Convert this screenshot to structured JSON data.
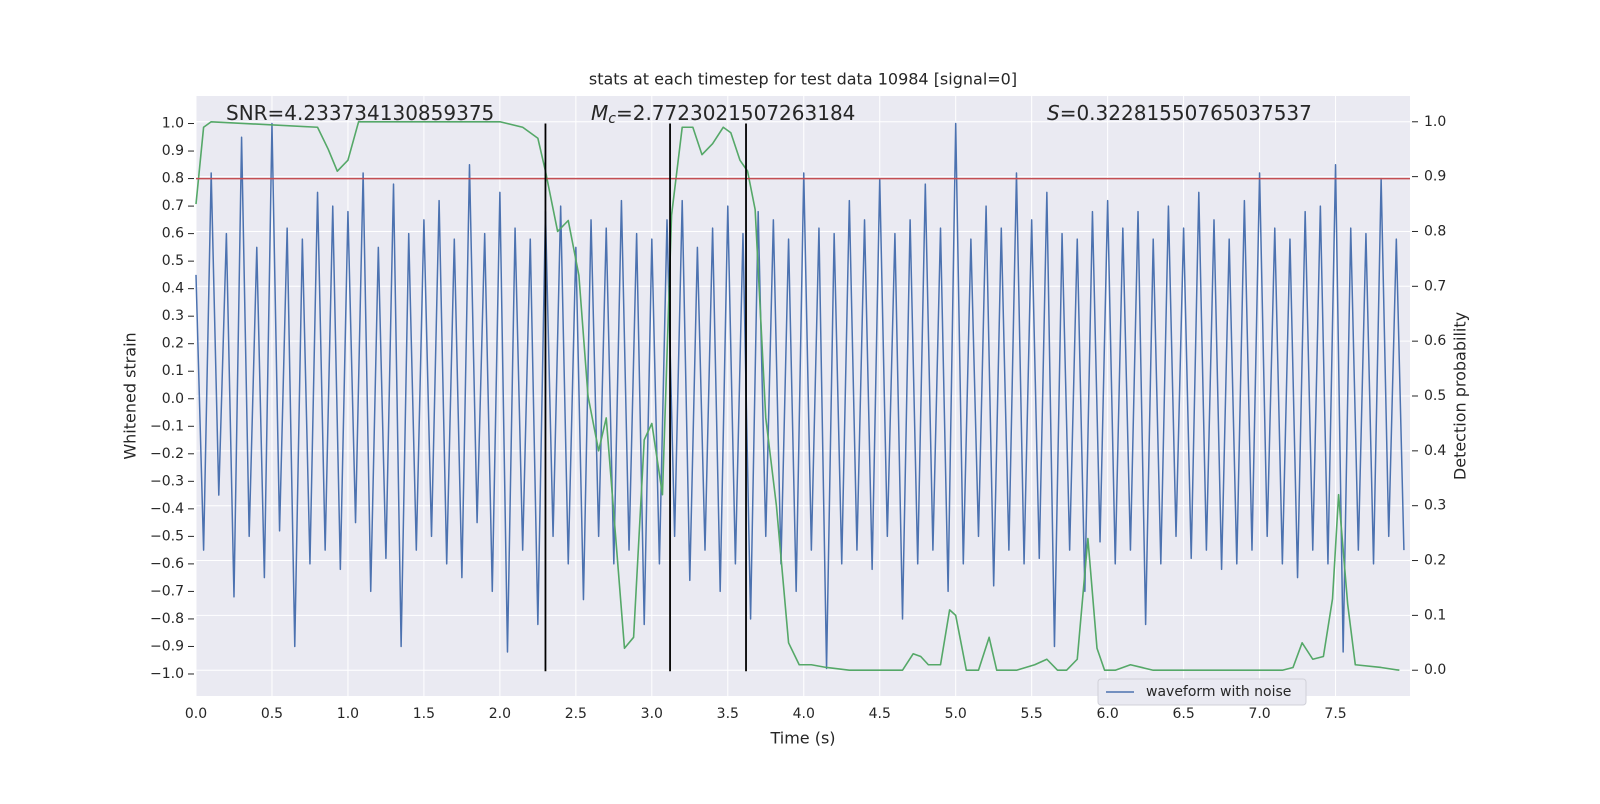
{
  "chart_data": {
    "type": "line",
    "title": "stats at each timestep for test data 10984 [signal=0]",
    "xlabel": "Time (s)",
    "ylabel": "Whitened strain",
    "y2label": "Detection probability",
    "annotations": [
      {
        "parts": [
          "SNR=4.233734130859375"
        ]
      },
      {
        "parts": [
          "M",
          "c",
          "=2.7723021507263184"
        ]
      },
      {
        "parts": [
          "S",
          "=0.32281550765037537"
        ]
      }
    ],
    "xlim": [
      0,
      7.99
    ],
    "ylim": [
      -1.08,
      1.1
    ],
    "y2lim": [
      -0.047,
      1.047
    ],
    "xticks": [
      {
        "value": 0,
        "label": "0.0"
      },
      {
        "value": 0.5,
        "label": "0.5"
      },
      {
        "value": 1,
        "label": "1.0"
      },
      {
        "value": 1.5,
        "label": "1.5"
      },
      {
        "value": 2,
        "label": "2.0"
      },
      {
        "value": 2.5,
        "label": "2.5"
      },
      {
        "value": 3,
        "label": "3.0"
      },
      {
        "value": 3.5,
        "label": "3.5"
      },
      {
        "value": 4,
        "label": "4.0"
      },
      {
        "value": 4.5,
        "label": "4.5"
      },
      {
        "value": 5,
        "label": "5.0"
      },
      {
        "value": 5.5,
        "label": "5.5"
      },
      {
        "value": 6,
        "label": "6.0"
      },
      {
        "value": 6.5,
        "label": "6.5"
      },
      {
        "value": 7,
        "label": "7.0"
      },
      {
        "value": 7.5,
        "label": "7.5"
      }
    ],
    "yticks": [
      {
        "value": 1,
        "label": "1.0"
      },
      {
        "value": 0.9,
        "label": "0.9"
      },
      {
        "value": 0.8,
        "label": "0.8"
      },
      {
        "value": 0.7,
        "label": "0.7"
      },
      {
        "value": 0.6,
        "label": "0.6"
      },
      {
        "value": 0.5,
        "label": "0.5"
      },
      {
        "value": 0.4,
        "label": "0.4"
      },
      {
        "value": 0.3,
        "label": "0.3"
      },
      {
        "value": 0.2,
        "label": "0.2"
      },
      {
        "value": 0.1,
        "label": "0.1"
      },
      {
        "value": 0,
        "label": "0.0"
      },
      {
        "value": -0.1,
        "label": "−0.1"
      },
      {
        "value": -0.2,
        "label": "−0.2"
      },
      {
        "value": -0.3,
        "label": "−0.3"
      },
      {
        "value": -0.4,
        "label": "−0.4"
      },
      {
        "value": -0.5,
        "label": "−0.5"
      },
      {
        "value": -0.6,
        "label": "−0.6"
      },
      {
        "value": -0.7,
        "label": "−0.7"
      },
      {
        "value": -0.8,
        "label": "−0.8"
      },
      {
        "value": -0.9,
        "label": "−0.9"
      },
      {
        "value": -1,
        "label": "−1.0"
      }
    ],
    "y2ticks": [
      {
        "value": 1,
        "label": "1.0"
      },
      {
        "value": 0.9,
        "label": "0.9"
      },
      {
        "value": 0.8,
        "label": "0.8"
      },
      {
        "value": 0.7,
        "label": "0.7"
      },
      {
        "value": 0.6,
        "label": "0.6"
      },
      {
        "value": 0.5,
        "label": "0.5"
      },
      {
        "value": 0.4,
        "label": "0.4"
      },
      {
        "value": 0.3,
        "label": "0.3"
      },
      {
        "value": 0.2,
        "label": "0.2"
      },
      {
        "value": 0.1,
        "label": "0.1"
      },
      {
        "value": 0,
        "label": "0.0"
      }
    ],
    "grid": true,
    "legend": "lower right",
    "hline": {
      "y": 0.8,
      "color": "#c44e52"
    },
    "vlines": {
      "x": [
        2.3,
        3.12,
        3.62
      ],
      "ymin": -0.99,
      "ymax": 1.0,
      "color": "#000000"
    },
    "series": [
      {
        "name": "waveform with noise",
        "color": "#4c72b0",
        "x": [
          0,
          0.05,
          0.1,
          0.15,
          0.2,
          0.25,
          0.3,
          0.35,
          0.4,
          0.45,
          0.5,
          0.55,
          0.6,
          0.65,
          0.7,
          0.75,
          0.8,
          0.85,
          0.9,
          0.95,
          1,
          1.05,
          1.1,
          1.15,
          1.2,
          1.25,
          1.3,
          1.35,
          1.4,
          1.45,
          1.5,
          1.55,
          1.6,
          1.65,
          1.7,
          1.75,
          1.8,
          1.85,
          1.9,
          1.95,
          2,
          2.05,
          2.1,
          2.15,
          2.2,
          2.25,
          2.3,
          2.35,
          2.4,
          2.45,
          2.5,
          2.55,
          2.6,
          2.65,
          2.7,
          2.75,
          2.8,
          2.85,
          2.9,
          2.95,
          3,
          3.05,
          3.1,
          3.15,
          3.2,
          3.25,
          3.3,
          3.35,
          3.4,
          3.45,
          3.5,
          3.55,
          3.6,
          3.65,
          3.7,
          3.75,
          3.8,
          3.85,
          3.9,
          3.95,
          4,
          4.05,
          4.1,
          4.15,
          4.2,
          4.25,
          4.3,
          4.35,
          4.4,
          4.45,
          4.5,
          4.55,
          4.6,
          4.65,
          4.7,
          4.75,
          4.8,
          4.85,
          4.9,
          4.95,
          5,
          5.05,
          5.1,
          5.15,
          5.2,
          5.25,
          5.3,
          5.35,
          5.4,
          5.45,
          5.5,
          5.55,
          5.6,
          5.65,
          5.7,
          5.75,
          5.8,
          5.85,
          5.9,
          5.95,
          6,
          6.05,
          6.1,
          6.15,
          6.2,
          6.25,
          6.3,
          6.35,
          6.4,
          6.45,
          6.5,
          6.55,
          6.6,
          6.65,
          6.7,
          6.75,
          6.8,
          6.85,
          6.9,
          6.95,
          7,
          7.05,
          7.1,
          7.15,
          7.2,
          7.25,
          7.3,
          7.35,
          7.4,
          7.45,
          7.5,
          7.55,
          7.6,
          7.65,
          7.7,
          7.75,
          7.8,
          7.85,
          7.9,
          7.95
        ],
        "values": [
          0.45,
          -0.55,
          0.82,
          -0.35,
          0.6,
          -0.72,
          0.95,
          -0.5,
          0.55,
          -0.65,
          1.0,
          -0.48,
          0.62,
          -0.9,
          0.58,
          -0.6,
          0.75,
          -0.55,
          0.7,
          -0.62,
          0.68,
          -0.45,
          0.82,
          -0.7,
          0.55,
          -0.58,
          0.78,
          -0.9,
          0.6,
          -0.55,
          0.65,
          -0.5,
          0.72,
          -0.6,
          0.58,
          -0.65,
          0.85,
          -0.45,
          0.6,
          -0.7,
          0.75,
          -0.92,
          0.62,
          -0.55,
          0.58,
          -0.82,
          0.68,
          -0.5,
          0.7,
          -0.6,
          0.55,
          -0.73,
          0.65,
          -0.5,
          0.62,
          -0.6,
          0.72,
          -0.55,
          0.6,
          -0.82,
          0.58,
          -0.6,
          0.65,
          -0.5,
          0.72,
          -0.66,
          0.55,
          -0.55,
          0.62,
          -0.7,
          0.7,
          -0.6,
          0.6,
          -0.8,
          0.68,
          -0.5,
          0.65,
          -0.6,
          0.58,
          -0.7,
          0.82,
          -0.55,
          0.62,
          -0.98,
          0.6,
          -0.6,
          0.72,
          -0.55,
          0.65,
          -0.62,
          0.8,
          -0.5,
          0.6,
          -0.8,
          0.65,
          -0.6,
          0.78,
          -0.55,
          0.62,
          -0.7,
          1.0,
          -0.6,
          0.58,
          -0.5,
          0.7,
          -0.68,
          0.62,
          -0.55,
          0.82,
          -0.6,
          0.65,
          -0.58,
          0.75,
          -0.9,
          0.6,
          -0.55,
          0.58,
          -0.7,
          0.68,
          -0.52,
          0.72,
          -0.6,
          0.62,
          -0.55,
          0.68,
          -0.82,
          0.58,
          -0.6,
          0.7,
          -0.5,
          0.62,
          -0.58,
          0.75,
          -0.55,
          0.65,
          -0.62,
          0.58,
          -0.6,
          0.72,
          -0.55,
          0.82,
          -0.5,
          0.62,
          -0.6,
          0.58,
          -0.65,
          0.68,
          -0.55,
          0.7,
          -0.6,
          0.85,
          -0.92,
          0.62,
          -0.55,
          0.6,
          -0.6,
          0.8,
          -0.5,
          0.58,
          -0.55
        ]
      },
      {
        "color": "#55a868",
        "axis": "y2",
        "x": [
          0,
          0.05,
          0.1,
          0.8,
          0.87,
          0.93,
          1,
          1.07,
          2,
          2.15,
          2.25,
          2.3,
          2.38,
          2.45,
          2.52,
          2.58,
          2.65,
          2.7,
          2.78,
          2.82,
          2.88,
          2.95,
          3,
          3.07,
          3.13,
          3.2,
          3.27,
          3.33,
          3.4,
          3.47,
          3.52,
          3.58,
          3.63,
          3.68,
          3.75,
          3.82,
          3.9,
          3.97,
          4.05,
          4.15,
          4.3,
          4.5,
          4.65,
          4.72,
          4.77,
          4.82,
          4.9,
          4.96,
          5,
          5.07,
          5.15,
          5.22,
          5.27,
          5.3,
          5.4,
          5.52,
          5.6,
          5.67,
          5.73,
          5.8,
          5.87,
          5.93,
          5.98,
          6.05,
          6.15,
          6.3,
          6.7,
          7.15,
          7.22,
          7.28,
          7.35,
          7.42,
          7.48,
          7.52,
          7.58,
          7.63,
          7.8,
          7.92
        ],
        "values": [
          0.85,
          0.99,
          1.0,
          0.99,
          0.95,
          0.91,
          0.93,
          1.0,
          1.0,
          0.99,
          0.97,
          0.91,
          0.8,
          0.82,
          0.72,
          0.5,
          0.4,
          0.46,
          0.18,
          0.04,
          0.06,
          0.42,
          0.45,
          0.32,
          0.83,
          0.99,
          0.99,
          0.94,
          0.96,
          0.99,
          0.98,
          0.93,
          0.91,
          0.84,
          0.46,
          0.3,
          0.05,
          0.01,
          0.01,
          0.005,
          0.0,
          0.0,
          0.0,
          0.03,
          0.025,
          0.01,
          0.01,
          0.11,
          0.1,
          0.0,
          0.0,
          0.06,
          0.0,
          0.0,
          0.0,
          0.01,
          0.02,
          0.0,
          0.0,
          0.02,
          0.24,
          0.04,
          0.0,
          0.0,
          0.01,
          0.0,
          0.0,
          0.0,
          0.005,
          0.05,
          0.02,
          0.025,
          0.13,
          0.32,
          0.12,
          0.01,
          0.005,
          0.0
        ]
      }
    ]
  }
}
